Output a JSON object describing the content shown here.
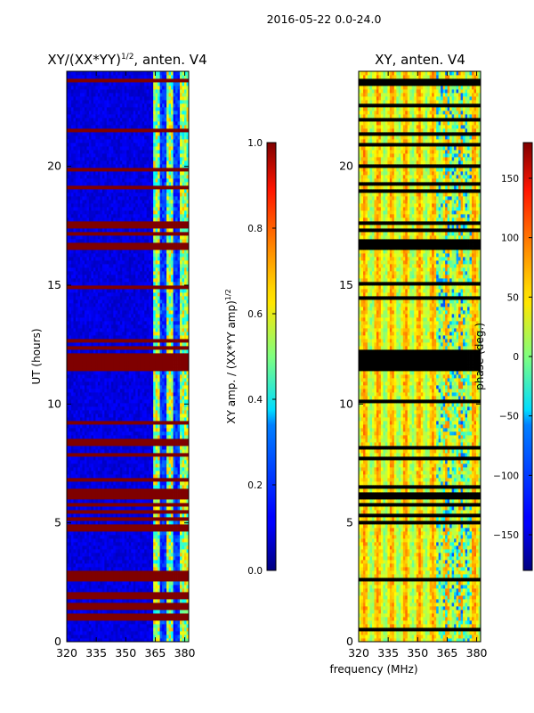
{
  "figure": {
    "suptitle": "2016-05-22 0.0-24.0",
    "shared_xlabel": "frequency (MHz)"
  },
  "chart_data": [
    {
      "type": "heatmap",
      "title": "XY/(XX*YY)",
      "title_exponent": "1/2",
      "title_suffix": ", anten. V4",
      "xlabel": "",
      "ylabel": "UT (hours)",
      "xlim": [
        320,
        382
      ],
      "ylim": [
        0,
        24
      ],
      "xticks": [
        320,
        335,
        350,
        365,
        380
      ],
      "yticks": [
        0,
        5,
        10,
        15,
        20
      ],
      "colormap": "jet",
      "data_columns_start_mhz": 364,
      "flagged_hour_bands": [
        [
          16.5,
          16.8
        ],
        [
          11.4,
          12.2
        ],
        [
          2.6,
          2.8
        ]
      ],
      "colorbar": {
        "label": "XY amp. / (XX*YY amp)",
        "label_exponent": "1/2",
        "range": [
          0.0,
          1.0
        ],
        "ticks": [
          "0.0",
          "0.2",
          "0.4",
          "0.6",
          "0.8",
          "1.0"
        ]
      }
    },
    {
      "type": "heatmap",
      "title": "XY, anten. V4",
      "xlabel": "frequency (MHz)",
      "ylabel": "",
      "xlim": [
        320,
        382
      ],
      "ylim": [
        0,
        24
      ],
      "xticks": [
        320,
        335,
        350,
        365,
        380
      ],
      "yticks": [
        0,
        5,
        10,
        15,
        20
      ],
      "colormap": "jet",
      "flagged_hour_bands": [
        [
          16.5,
          16.8
        ],
        [
          11.4,
          12.2
        ]
      ],
      "colorbar": {
        "label": "phase (deg.)",
        "range": [
          -180,
          180
        ],
        "ticks": [
          "150",
          "100",
          "50",
          "0",
          "−50",
          "−100",
          "−150"
        ]
      }
    }
  ]
}
